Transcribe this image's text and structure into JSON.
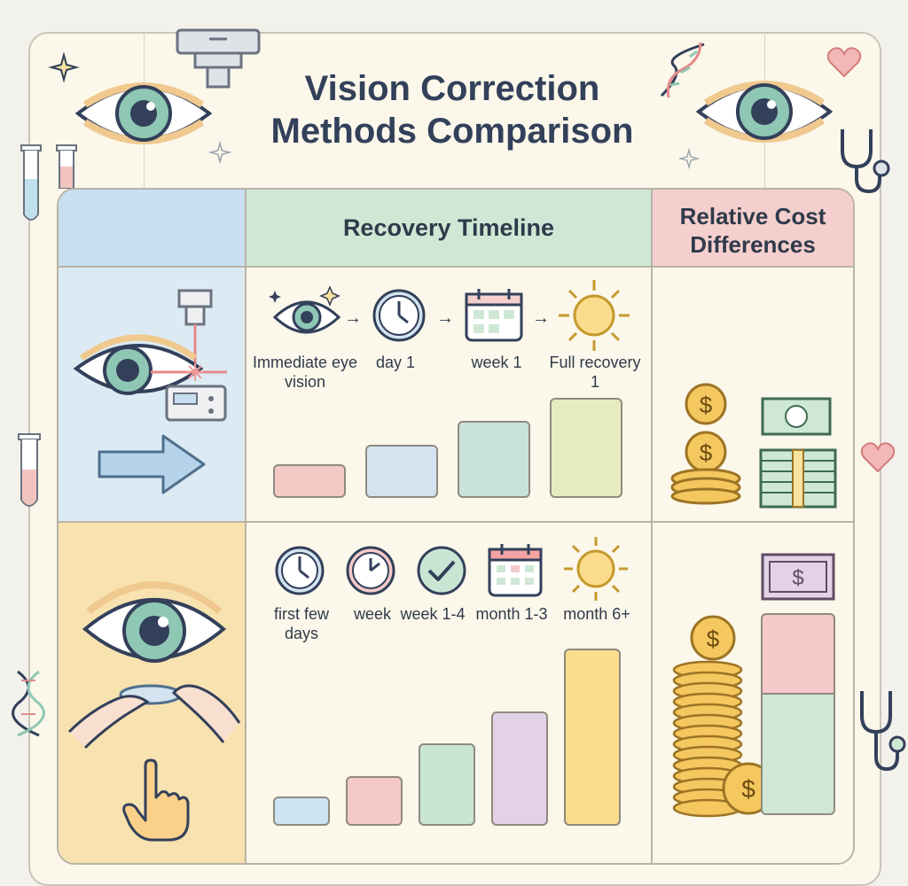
{
  "title_line1": "Vision Correction",
  "title_line2": "Methods Comparison",
  "headers": {
    "recovery": "Recovery Timeline",
    "cost": "Relative Cost Differences"
  },
  "row1": {
    "method_icon": "laser-eye-surgery-icon",
    "steps": [
      "Immediate eye vision",
      "day 1",
      "week 1",
      "Full recovery 1"
    ],
    "step_icons": [
      "eye-icon",
      "clock-icon",
      "calendar-icon",
      "sun-icon"
    ],
    "bar_levels": [
      0.25,
      0.4,
      0.58,
      0.75
    ],
    "bar_colors": [
      "#f2c9c3",
      "#d3e4f0",
      "#c9e3d9",
      "#e6ecbf"
    ]
  },
  "row2": {
    "method_icon": "contact-lens-icon",
    "steps": [
      "first few days",
      "week",
      "week 1-4",
      "month 1-3",
      "month 6+"
    ],
    "step_icons": [
      "clock-icon",
      "clock-icon",
      "check-icon",
      "calendar-icon",
      "sun-icon"
    ],
    "bar_levels": [
      0.15,
      0.25,
      0.42,
      0.58,
      0.9
    ],
    "bar_colors": [
      "#cde5f2",
      "#f5c9c9",
      "#c9e6d4",
      "#e3d1e6",
      "#fbdc8c"
    ]
  },
  "cost_symbol": "$",
  "colors": {
    "header_blue": "#c7dff0",
    "header_green": "#cfe8d6",
    "header_pink": "#f4cfcd",
    "row1_left": "#dcebf3",
    "row2_left": "#f7e2b0",
    "title": "#33405a"
  }
}
